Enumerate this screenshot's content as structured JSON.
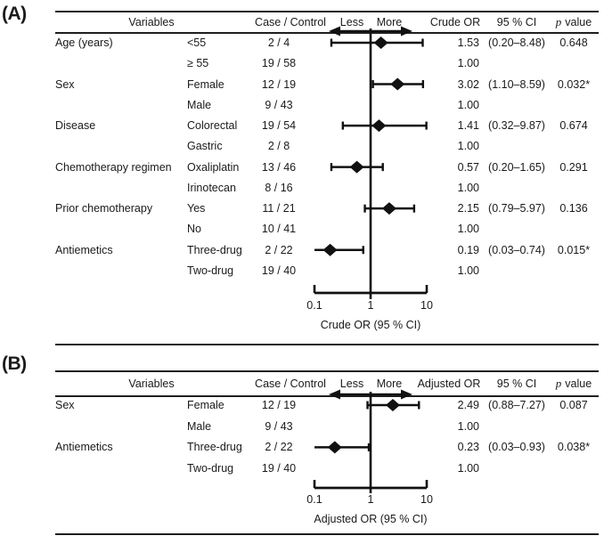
{
  "panels": [
    {
      "label": "(A)",
      "headers": {
        "variables": "Variables",
        "case_control": "Case / Control",
        "less": "Less",
        "more": "More",
        "or": "Crude OR",
        "ci": "95 % CI",
        "p_italic": "p",
        "p_rest": "value"
      },
      "axis_title": "Crude OR (95 % CI)",
      "ticks": [
        "0.1",
        "1",
        "10"
      ],
      "rows": [
        {
          "variable": "Age (years)",
          "level": "<55",
          "case_control": "2 / 4",
          "or": 1.53,
          "ci_low": 0.2,
          "ci_high": 8.48,
          "or_text": "1.53",
          "ci_text": "(0.20–8.48)",
          "p_text": "0.648"
        },
        {
          "variable": "",
          "level": "≥ 55",
          "case_control": "19 / 58",
          "or_text": "1.00"
        },
        {
          "variable": "Sex",
          "level": "Female",
          "case_control": "12 / 19",
          "or": 3.02,
          "ci_low": 1.1,
          "ci_high": 8.59,
          "or_text": "3.02",
          "ci_text": "(1.10–8.59)",
          "p_text": "0.032*"
        },
        {
          "variable": "",
          "level": "Male",
          "case_control": "9 / 43",
          "or_text": "1.00"
        },
        {
          "variable": "Disease",
          "level": "Colorectal",
          "case_control": "19 / 54",
          "or": 1.41,
          "ci_low": 0.32,
          "ci_high": 9.87,
          "or_text": "1.41",
          "ci_text": "(0.32–9.87)",
          "p_text": "0.674"
        },
        {
          "variable": "",
          "level": "Gastric",
          "case_control": "2 / 8",
          "or_text": "1.00"
        },
        {
          "variable": "Chemotherapy regimen",
          "level": "Oxaliplatin",
          "case_control": "13 / 46",
          "or": 0.57,
          "ci_low": 0.2,
          "ci_high": 1.65,
          "or_text": "0.57",
          "ci_text": "(0.20–1.65)",
          "p_text": "0.291"
        },
        {
          "variable": "",
          "level": "Irinotecan",
          "case_control": "8 / 16",
          "or_text": "1.00"
        },
        {
          "variable": "Prior chemotherapy",
          "level": "Yes",
          "case_control": "11 / 21",
          "or": 2.15,
          "ci_low": 0.79,
          "ci_high": 5.97,
          "or_text": "2.15",
          "ci_text": "(0.79–5.97)",
          "p_text": "0.136"
        },
        {
          "variable": "",
          "level": "No",
          "case_control": "10 / 41",
          "or_text": "1.00"
        },
        {
          "variable": "Antiemetics",
          "level": "Three-drug",
          "case_control": "2 / 22",
          "or": 0.19,
          "ci_low": 0.03,
          "ci_high": 0.74,
          "or_text": "0.19",
          "ci_text": "(0.03–0.74)",
          "p_text": "0.015*"
        },
        {
          "variable": "",
          "level": "Two-drug",
          "case_control": "19 / 40",
          "or_text": "1.00"
        }
      ]
    },
    {
      "label": "(B)",
      "headers": {
        "variables": "Variables",
        "case_control": "Case / Control",
        "less": "Less",
        "more": "More",
        "or": "Adjusted OR",
        "ci": "95 % CI",
        "p_italic": "p",
        "p_rest": "value"
      },
      "axis_title": "Adjusted OR (95 % CI)",
      "ticks": [
        "0.1",
        "1",
        "10"
      ],
      "rows": [
        {
          "variable": "Sex",
          "level": "Female",
          "case_control": "12 / 19",
          "or": 2.49,
          "ci_low": 0.88,
          "ci_high": 7.27,
          "or_text": "2.49",
          "ci_text": "(0.88–7.27)",
          "p_text": "0.087"
        },
        {
          "variable": "",
          "level": "Male",
          "case_control": "9 / 43",
          "or_text": "1.00"
        },
        {
          "variable": "Antiemetics",
          "level": "Three-drug",
          "case_control": "2 / 22",
          "or": 0.23,
          "ci_low": 0.03,
          "ci_high": 0.93,
          "or_text": "0.23",
          "ci_text": "(0.03–0.93)",
          "p_text": "0.038*"
        },
        {
          "variable": "",
          "level": "Two-drug",
          "case_control": "19 / 40",
          "or_text": "1.00"
        }
      ]
    }
  ],
  "colors": {
    "ink": "#1a1a1a",
    "line": "#111111"
  },
  "chart_data": [
    {
      "type": "scatter",
      "subtype": "forest-plot",
      "title": "Crude OR (95 % CI)",
      "xlabel": "Crude OR (95 % CI)",
      "xscale": "log",
      "xlim": [
        0.1,
        10
      ],
      "xticks": [
        "0.1",
        "1",
        "10"
      ],
      "reference_line": 1,
      "direction_labels": [
        "Less",
        "More"
      ],
      "points": [
        {
          "label": "Age (years) <55",
          "case_control": "2 / 4",
          "or": 1.53,
          "ci": [
            0.2,
            8.48
          ],
          "p": "0.648"
        },
        {
          "label": "Age (years) ≥ 55 (reference)",
          "case_control": "19 / 58",
          "or": 1.0
        },
        {
          "label": "Sex Female",
          "case_control": "12 / 19",
          "or": 3.02,
          "ci": [
            1.1,
            8.59
          ],
          "p": "0.032*"
        },
        {
          "label": "Sex Male (reference)",
          "case_control": "9 / 43",
          "or": 1.0
        },
        {
          "label": "Disease Colorectal",
          "case_control": "19 / 54",
          "or": 1.41,
          "ci": [
            0.32,
            9.87
          ],
          "p": "0.674"
        },
        {
          "label": "Disease Gastric (reference)",
          "case_control": "2 / 8",
          "or": 1.0
        },
        {
          "label": "Chemotherapy regimen Oxaliplatin",
          "case_control": "13 / 46",
          "or": 0.57,
          "ci": [
            0.2,
            1.65
          ],
          "p": "0.291"
        },
        {
          "label": "Chemotherapy regimen Irinotecan (reference)",
          "case_control": "8 / 16",
          "or": 1.0
        },
        {
          "label": "Prior chemotherapy Yes",
          "case_control": "11 / 21",
          "or": 2.15,
          "ci": [
            0.79,
            5.97
          ],
          "p": "0.136"
        },
        {
          "label": "Prior chemotherapy No (reference)",
          "case_control": "10 / 41",
          "or": 1.0
        },
        {
          "label": "Antiemetics Three-drug",
          "case_control": "2 / 22",
          "or": 0.19,
          "ci": [
            0.03,
            0.74
          ],
          "p": "0.015*"
        },
        {
          "label": "Antiemetics Two-drug (reference)",
          "case_control": "19 / 40",
          "or": 1.0
        }
      ]
    },
    {
      "type": "scatter",
      "subtype": "forest-plot",
      "title": "Adjusted OR (95 % CI)",
      "xlabel": "Adjusted OR (95 % CI)",
      "xscale": "log",
      "xlim": [
        0.1,
        10
      ],
      "xticks": [
        "0.1",
        "1",
        "10"
      ],
      "reference_line": 1,
      "direction_labels": [
        "Less",
        "More"
      ],
      "points": [
        {
          "label": "Sex Female",
          "case_control": "12 / 19",
          "or": 2.49,
          "ci": [
            0.88,
            7.27
          ],
          "p": "0.087"
        },
        {
          "label": "Sex Male (reference)",
          "case_control": "9 / 43",
          "or": 1.0
        },
        {
          "label": "Antiemetics Three-drug",
          "case_control": "2 / 22",
          "or": 0.23,
          "ci": [
            0.03,
            0.93
          ],
          "p": "0.038*"
        },
        {
          "label": "Antiemetics Two-drug (reference)",
          "case_control": "19 / 40",
          "or": 1.0
        }
      ]
    }
  ]
}
